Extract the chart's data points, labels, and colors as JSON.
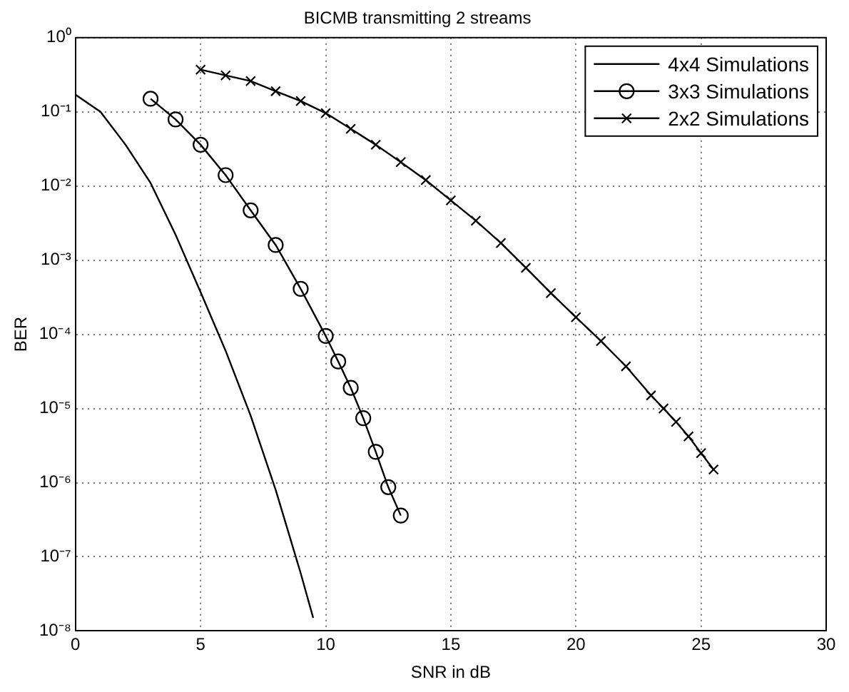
{
  "chart_data": {
    "type": "line",
    "title": "BICMB transmitting 2 streams",
    "xlabel": "SNR in dB",
    "ylabel": "BER",
    "log": "y",
    "grid": true,
    "legend": "top right",
    "xlim": [
      0,
      30
    ],
    "xticks": [
      0,
      5,
      10,
      15,
      20,
      25,
      30
    ],
    "ylim": [
      1e-08,
      1
    ],
    "yticks": [
      {
        "value": 1e-08,
        "label": "10⁻⁸"
      },
      {
        "value": 1e-07,
        "label": "10⁻⁷"
      },
      {
        "value": 1e-06,
        "label": "10⁻⁶"
      },
      {
        "value": 1e-05,
        "label": "10⁻⁵"
      },
      {
        "value": 0.0001,
        "label": "10⁻⁴"
      },
      {
        "value": 0.001,
        "label": "10⁻³"
      },
      {
        "value": 0.01,
        "label": "10⁻²"
      },
      {
        "value": 0.1,
        "label": "10⁻¹"
      },
      {
        "value": 1,
        "label": "10⁰"
      }
    ],
    "series": [
      {
        "name": "4x4 Simulations",
        "color": "#000000",
        "marker": "none",
        "x": [
          0,
          1,
          2,
          3,
          4,
          5,
          6,
          7,
          8,
          9,
          9.5
        ],
        "values": [
          0.17,
          0.1,
          0.036,
          0.011,
          0.0022,
          0.00037,
          6e-05,
          8e-06,
          8e-07,
          6e-08,
          1.5e-08
        ]
      },
      {
        "name": "3x3 Simulations",
        "color": "#000000",
        "marker": "circle",
        "x": [
          3,
          4,
          5,
          6,
          7,
          8,
          9,
          10,
          10.5,
          11,
          11.5,
          12,
          12.5,
          13
        ],
        "values": [
          0.15,
          0.079,
          0.036,
          0.014,
          0.0047,
          0.0016,
          0.00041,
          9.5e-05,
          4.3e-05,
          1.9e-05,
          7.4e-06,
          2.6e-06,
          8.7e-07,
          3.6e-07
        ]
      },
      {
        "name": "2x2 Simulations",
        "color": "#000000",
        "marker": "cross",
        "x": [
          5,
          6,
          7,
          8,
          9,
          10,
          11,
          12,
          13,
          14,
          15,
          16,
          17,
          18,
          19,
          20,
          21,
          22,
          23,
          23.5,
          24,
          24.5,
          25,
          25.5
        ],
        "values": [
          0.37,
          0.31,
          0.26,
          0.19,
          0.14,
          0.096,
          0.059,
          0.036,
          0.021,
          0.012,
          0.0064,
          0.0034,
          0.0017,
          0.00079,
          0.00036,
          0.00017,
          8.1e-05,
          3.7e-05,
          1.5e-05,
          1e-05,
          6.6e-06,
          4.2e-06,
          2.5e-06,
          1.5e-06
        ]
      }
    ]
  }
}
